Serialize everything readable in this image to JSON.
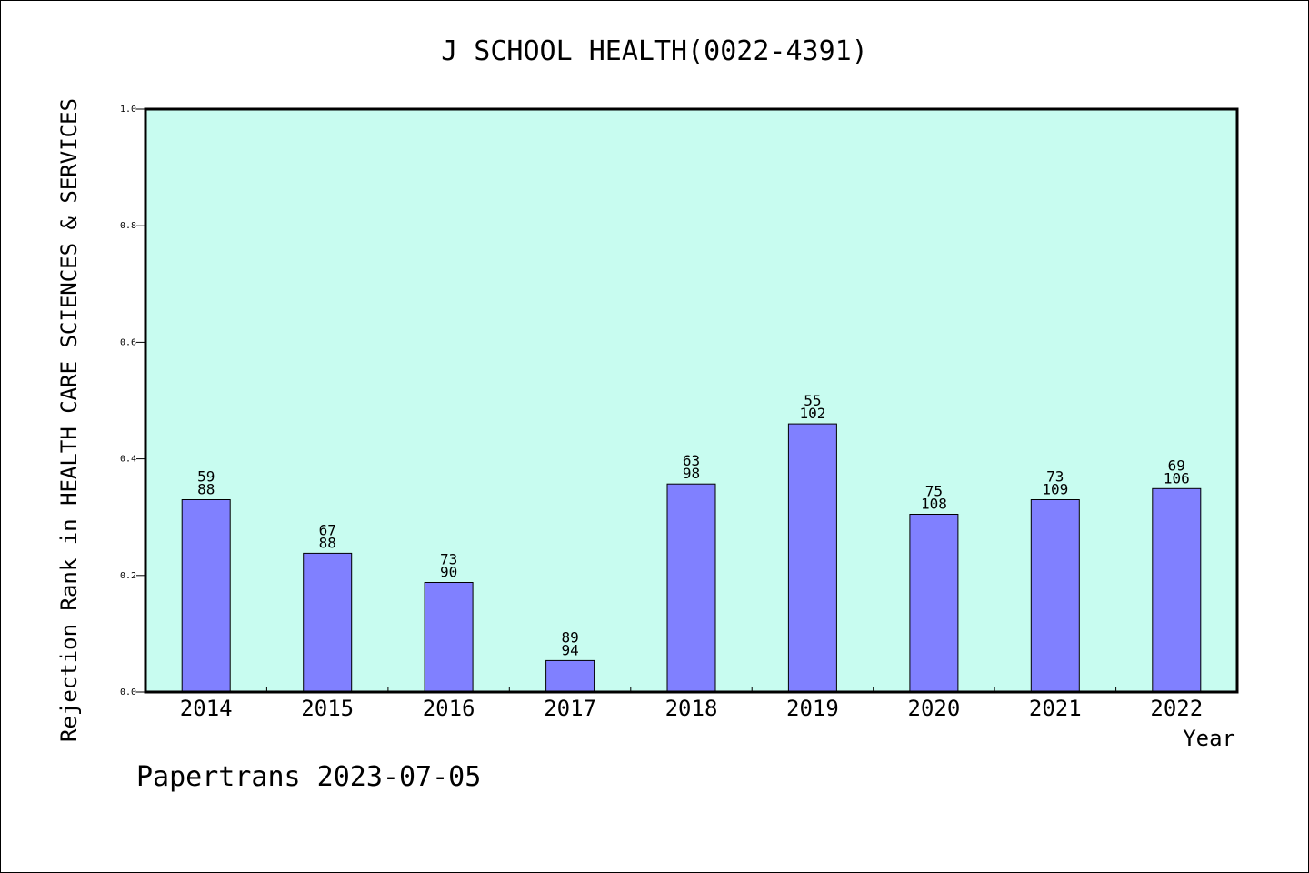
{
  "chart_data": {
    "type": "bar",
    "title": "J SCHOOL HEALTH(0022-4391)",
    "xlabel": "Year",
    "ylabel": "Rejection Rank in HEALTH CARE SCIENCES & SERVICES",
    "ylim": [
      0.0,
      1.0
    ],
    "yticks": [
      "0.0",
      "0.2",
      "0.4",
      "0.6",
      "0.8",
      "1.0"
    ],
    "categories": [
      "2014",
      "2015",
      "2016",
      "2017",
      "2018",
      "2019",
      "2020",
      "2021",
      "2022"
    ],
    "values": [
      0.33,
      0.238,
      0.188,
      0.054,
      0.357,
      0.46,
      0.305,
      0.33,
      0.349
    ],
    "labels_top": [
      "59",
      "67",
      "73",
      "89",
      "63",
      "55",
      "75",
      "73",
      "69"
    ],
    "labels_bottom": [
      "88",
      "88",
      "90",
      "94",
      "98",
      "102",
      "108",
      "109",
      "106"
    ],
    "grid": false,
    "colors": {
      "plot_background": "#c8fcf0",
      "bar_fill": "#8080ff",
      "bar_stroke": "#000000"
    }
  },
  "footer": {
    "watermark": "Papertrans 2023-07-05"
  }
}
